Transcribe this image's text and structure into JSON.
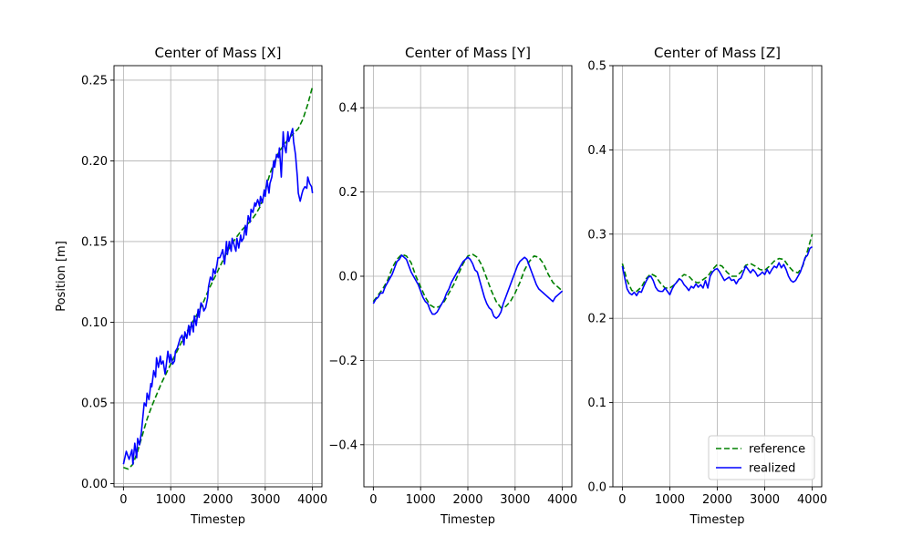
{
  "chart_data": [
    {
      "type": "line",
      "title": "Center of Mass [X]",
      "xlabel": "Timestep",
      "ylabel": "Position [m]",
      "xlim": [
        -200,
        4200
      ],
      "ylim": [
        -0.002,
        0.259
      ],
      "xticks": [
        0,
        1000,
        2000,
        3000,
        4000
      ],
      "xtick_labels": [
        "0",
        "1000",
        "2000",
        "3000",
        "4000"
      ],
      "yticks": [
        0.0,
        0.05,
        0.1,
        0.15,
        0.2,
        0.25
      ],
      "ytick_labels": [
        "0.00",
        "0.05",
        "0.10",
        "0.15",
        "0.20",
        "0.25"
      ],
      "grid": true,
      "series": [
        {
          "name": "reference",
          "color": "#008000",
          "dash": true,
          "x": [
            0,
            100,
            200,
            300,
            400,
            500,
            600,
            700,
            800,
            900,
            1000,
            1100,
            1200,
            1300,
            1400,
            1500,
            1600,
            1700,
            1800,
            1900,
            2000,
            2100,
            2200,
            2300,
            2400,
            2500,
            2600,
            2700,
            2800,
            2900,
            3000,
            3100,
            3200,
            3300,
            3400,
            3500,
            3600,
            3700,
            3800,
            3900,
            4000
          ],
          "y": [
            0.01,
            0.009,
            0.012,
            0.02,
            0.03,
            0.04,
            0.048,
            0.055,
            0.062,
            0.068,
            0.074,
            0.08,
            0.086,
            0.092,
            0.097,
            0.102,
            0.107,
            0.113,
            0.12,
            0.126,
            0.132,
            0.138,
            0.144,
            0.149,
            0.153,
            0.157,
            0.16,
            0.163,
            0.167,
            0.172,
            0.182,
            0.192,
            0.2,
            0.206,
            0.21,
            0.214,
            0.217,
            0.22,
            0.226,
            0.235,
            0.246
          ]
        },
        {
          "name": "realized",
          "color": "#0000ff",
          "dash": false,
          "x": [
            0,
            60,
            120,
            180,
            200,
            240,
            280,
            300,
            340,
            380,
            400,
            440,
            480,
            500,
            540,
            580,
            600,
            640,
            680,
            700,
            740,
            780,
            800,
            840,
            880,
            900,
            940,
            980,
            1000,
            1040,
            1080,
            1100,
            1140,
            1180,
            1200,
            1240,
            1280,
            1300,
            1340,
            1380,
            1400,
            1440,
            1480,
            1500,
            1540,
            1580,
            1600,
            1640,
            1680,
            1700,
            1740,
            1780,
            1800,
            1840,
            1880,
            1900,
            1940,
            1980,
            2000,
            2040,
            2080,
            2100,
            2140,
            2180,
            2200,
            2240,
            2280,
            2300,
            2340,
            2380,
            2400,
            2440,
            2480,
            2500,
            2540,
            2580,
            2600,
            2640,
            2680,
            2700,
            2740,
            2780,
            2800,
            2840,
            2880,
            2900,
            2940,
            2980,
            3000,
            3040,
            3080,
            3100,
            3140,
            3180,
            3200,
            3240,
            3280,
            3300,
            3340,
            3380,
            3400,
            3440,
            3480,
            3500,
            3540,
            3580,
            3600,
            3640,
            3680,
            3700,
            3740,
            3780,
            3800,
            3840,
            3880,
            3900,
            3940,
            3980,
            4000
          ],
          "y": [
            0.012,
            0.02,
            0.015,
            0.021,
            0.012,
            0.025,
            0.016,
            0.028,
            0.024,
            0.032,
            0.038,
            0.05,
            0.048,
            0.056,
            0.052,
            0.062,
            0.06,
            0.07,
            0.066,
            0.078,
            0.072,
            0.079,
            0.074,
            0.076,
            0.068,
            0.072,
            0.082,
            0.075,
            0.08,
            0.074,
            0.076,
            0.082,
            0.084,
            0.088,
            0.09,
            0.092,
            0.086,
            0.094,
            0.09,
            0.098,
            0.092,
            0.1,
            0.094,
            0.104,
            0.098,
            0.108,
            0.103,
            0.112,
            0.11,
            0.107,
            0.109,
            0.115,
            0.122,
            0.128,
            0.126,
            0.133,
            0.13,
            0.136,
            0.14,
            0.14,
            0.143,
            0.145,
            0.136,
            0.15,
            0.142,
            0.15,
            0.144,
            0.152,
            0.148,
            0.144,
            0.152,
            0.146,
            0.154,
            0.15,
            0.152,
            0.16,
            0.154,
            0.166,
            0.162,
            0.17,
            0.168,
            0.174,
            0.172,
            0.176,
            0.172,
            0.178,
            0.174,
            0.182,
            0.178,
            0.188,
            0.18,
            0.186,
            0.19,
            0.2,
            0.196,
            0.204,
            0.202,
            0.208,
            0.19,
            0.218,
            0.21,
            0.205,
            0.218,
            0.212,
            0.216,
            0.22,
            0.212,
            0.204,
            0.19,
            0.18,
            0.175,
            0.18,
            0.182,
            0.184,
            0.183,
            0.19,
            0.186,
            0.184,
            0.18
          ]
        }
      ]
    },
    {
      "type": "line",
      "title": "Center of Mass [Y]",
      "xlabel": "Timestep",
      "ylabel": "",
      "xlim": [
        -200,
        4200
      ],
      "ylim": [
        -0.5,
        0.5
      ],
      "xticks": [
        0,
        1000,
        2000,
        3000,
        4000
      ],
      "xtick_labels": [
        "0",
        "1000",
        "2000",
        "3000",
        "4000"
      ],
      "yticks": [
        -0.4,
        -0.2,
        0.0,
        0.2,
        0.4
      ],
      "ytick_labels": [
        "−0.4",
        "−0.2",
        "0.0",
        "0.2",
        "0.4"
      ],
      "grid": true,
      "series": [
        {
          "name": "reference",
          "color": "#008000",
          "dash": true,
          "x": [
            0,
            100,
            200,
            300,
            400,
            500,
            600,
            700,
            800,
            900,
            1000,
            1100,
            1200,
            1300,
            1400,
            1500,
            1600,
            1700,
            1800,
            1900,
            2000,
            2100,
            2200,
            2300,
            2400,
            2500,
            2600,
            2700,
            2800,
            2900,
            3000,
            3100,
            3200,
            3300,
            3400,
            3500,
            3600,
            3700,
            3800,
            3900,
            4000
          ],
          "y": [
            -0.06,
            -0.045,
            -0.03,
            -0.01,
            0.02,
            0.04,
            0.052,
            0.048,
            0.032,
            0.0,
            -0.025,
            -0.05,
            -0.068,
            -0.075,
            -0.072,
            -0.06,
            -0.04,
            -0.02,
            0.005,
            0.03,
            0.048,
            0.052,
            0.045,
            0.025,
            -0.005,
            -0.035,
            -0.06,
            -0.075,
            -0.072,
            -0.06,
            -0.04,
            -0.015,
            0.015,
            0.035,
            0.048,
            0.045,
            0.03,
            0.005,
            -0.015,
            -0.025,
            -0.035
          ]
        },
        {
          "name": "realized",
          "color": "#0000ff",
          "dash": false,
          "x": [
            0,
            50,
            100,
            150,
            200,
            250,
            300,
            350,
            400,
            450,
            500,
            550,
            600,
            650,
            700,
            750,
            800,
            850,
            900,
            950,
            1000,
            1050,
            1100,
            1150,
            1200,
            1250,
            1300,
            1350,
            1400,
            1450,
            1500,
            1550,
            1600,
            1650,
            1700,
            1750,
            1800,
            1850,
            1900,
            1950,
            2000,
            2050,
            2100,
            2150,
            2200,
            2250,
            2300,
            2350,
            2400,
            2450,
            2500,
            2550,
            2600,
            2650,
            2700,
            2750,
            2800,
            2850,
            2900,
            2950,
            3000,
            3050,
            3100,
            3150,
            3200,
            3250,
            3300,
            3350,
            3400,
            3450,
            3500,
            3550,
            3600,
            3650,
            3700,
            3750,
            3800,
            3850,
            3900,
            3950,
            4000
          ],
          "y": [
            -0.065,
            -0.055,
            -0.05,
            -0.04,
            -0.04,
            -0.025,
            -0.015,
            -0.005,
            0.005,
            0.02,
            0.035,
            0.04,
            0.05,
            0.045,
            0.04,
            0.025,
            0.01,
            0.0,
            -0.01,
            -0.02,
            -0.035,
            -0.05,
            -0.06,
            -0.065,
            -0.08,
            -0.09,
            -0.09,
            -0.085,
            -0.075,
            -0.065,
            -0.055,
            -0.04,
            -0.03,
            -0.015,
            -0.005,
            0.005,
            0.015,
            0.025,
            0.035,
            0.04,
            0.045,
            0.04,
            0.03,
            0.015,
            0.01,
            -0.01,
            -0.03,
            -0.05,
            -0.065,
            -0.075,
            -0.08,
            -0.095,
            -0.1,
            -0.095,
            -0.085,
            -0.065,
            -0.05,
            -0.035,
            -0.02,
            -0.005,
            0.01,
            0.025,
            0.035,
            0.04,
            0.045,
            0.04,
            0.025,
            0.01,
            -0.005,
            -0.02,
            -0.03,
            -0.035,
            -0.04,
            -0.045,
            -0.05,
            -0.055,
            -0.06,
            -0.05,
            -0.045,
            -0.04,
            -0.035
          ]
        }
      ]
    },
    {
      "type": "line",
      "title": "Center of Mass [Z]",
      "xlabel": "Timestep",
      "ylabel": "",
      "xlim": [
        -200,
        4200
      ],
      "ylim": [
        0.0,
        0.5
      ],
      "xticks": [
        0,
        1000,
        2000,
        3000,
        4000
      ],
      "xtick_labels": [
        "0",
        "1000",
        "2000",
        "3000",
        "4000"
      ],
      "yticks": [
        0.0,
        0.1,
        0.2,
        0.3,
        0.4,
        0.5
      ],
      "ytick_labels": [
        "0.0",
        "0.1",
        "0.2",
        "0.3",
        "0.4",
        "0.5"
      ],
      "grid": true,
      "legend": {
        "placement": "lower-right",
        "entries": [
          "reference",
          "realized"
        ]
      },
      "series": [
        {
          "name": "reference",
          "color": "#008000",
          "dash": true,
          "x": [
            0,
            100,
            200,
            300,
            400,
            500,
            600,
            700,
            800,
            900,
            1000,
            1100,
            1200,
            1300,
            1400,
            1500,
            1600,
            1700,
            1800,
            1900,
            2000,
            2100,
            2200,
            2300,
            2400,
            2500,
            2600,
            2700,
            2800,
            2900,
            3000,
            3100,
            3200,
            3300,
            3400,
            3500,
            3600,
            3700,
            3800,
            3900,
            4000
          ],
          "y": [
            0.265,
            0.245,
            0.233,
            0.232,
            0.237,
            0.247,
            0.253,
            0.25,
            0.242,
            0.236,
            0.236,
            0.24,
            0.247,
            0.252,
            0.25,
            0.244,
            0.242,
            0.246,
            0.25,
            0.258,
            0.264,
            0.262,
            0.255,
            0.25,
            0.25,
            0.255,
            0.263,
            0.265,
            0.262,
            0.258,
            0.257,
            0.262,
            0.268,
            0.271,
            0.27,
            0.262,
            0.256,
            0.254,
            0.262,
            0.28,
            0.3
          ]
        },
        {
          "name": "realized",
          "color": "#0000ff",
          "dash": false,
          "x": [
            0,
            50,
            100,
            150,
            200,
            250,
            300,
            350,
            400,
            450,
            500,
            550,
            600,
            650,
            700,
            750,
            800,
            850,
            900,
            950,
            1000,
            1050,
            1100,
            1150,
            1200,
            1250,
            1300,
            1350,
            1400,
            1450,
            1500,
            1550,
            1600,
            1650,
            1700,
            1750,
            1800,
            1850,
            1900,
            1950,
            2000,
            2050,
            2100,
            2150,
            2200,
            2250,
            2300,
            2350,
            2400,
            2450,
            2500,
            2550,
            2600,
            2650,
            2700,
            2750,
            2800,
            2850,
            2900,
            2950,
            3000,
            3050,
            3100,
            3150,
            3200,
            3250,
            3300,
            3350,
            3400,
            3450,
            3500,
            3550,
            3600,
            3650,
            3700,
            3750,
            3800,
            3850,
            3900,
            3950,
            4000
          ],
          "y": [
            0.262,
            0.248,
            0.235,
            0.23,
            0.228,
            0.231,
            0.227,
            0.232,
            0.231,
            0.238,
            0.244,
            0.249,
            0.25,
            0.245,
            0.237,
            0.233,
            0.232,
            0.232,
            0.236,
            0.232,
            0.228,
            0.235,
            0.24,
            0.243,
            0.247,
            0.245,
            0.24,
            0.237,
            0.233,
            0.238,
            0.236,
            0.241,
            0.237,
            0.24,
            0.236,
            0.245,
            0.236,
            0.25,
            0.255,
            0.258,
            0.259,
            0.255,
            0.25,
            0.245,
            0.247,
            0.249,
            0.245,
            0.246,
            0.241,
            0.246,
            0.248,
            0.255,
            0.262,
            0.258,
            0.254,
            0.258,
            0.255,
            0.25,
            0.252,
            0.255,
            0.252,
            0.258,
            0.253,
            0.258,
            0.262,
            0.26,
            0.266,
            0.26,
            0.264,
            0.258,
            0.25,
            0.245,
            0.243,
            0.245,
            0.25,
            0.255,
            0.263,
            0.272,
            0.275,
            0.283,
            0.285
          ]
        }
      ]
    }
  ]
}
